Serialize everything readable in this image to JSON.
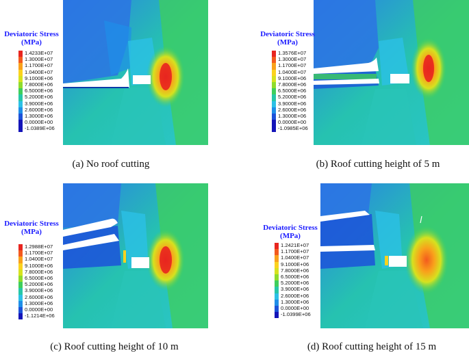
{
  "legend_colors": [
    "#e8251f",
    "#f35a1e",
    "#f9a11b",
    "#fbd21e",
    "#d6e21f",
    "#8fdc2c",
    "#3fce5c",
    "#26c7a8",
    "#2cc0e6",
    "#1f8ee8",
    "#1c52d9",
    "#1414b8"
  ],
  "panels": [
    {
      "id": "a",
      "legend_title_line1": "Deviatoric Stress",
      "legend_title_line2": "(MPa)",
      "legend_labels": [
        "1.4233E+07",
        "1.3000E+07",
        "1.1700E+07",
        "1.0400E+07",
        "9.1000E+06",
        "7.8000E+06",
        "6.5000E+06",
        "5.2000E+06",
        "3.9000E+06",
        "2.6000E+06",
        "1.3000E+06",
        "0.0000E+00",
        "-1.0389E+06"
      ],
      "caption": "(a) No roof cutting"
    },
    {
      "id": "b",
      "legend_title_line1": "Deviatoric Stress",
      "legend_title_line2": "(MPa)",
      "legend_labels": [
        "1.3576E+07",
        "1.3000E+07",
        "1.1700E+07",
        "1.0400E+07",
        "9.1000E+06",
        "7.8000E+06",
        "6.5000E+06",
        "5.2000E+06",
        "3.9000E+06",
        "2.6000E+06",
        "1.3000E+06",
        "0.0000E+00",
        "-1.0985E+06"
      ],
      "caption": "(b) Roof cutting height of 5 m"
    },
    {
      "id": "c",
      "legend_title_line1": "Deviatoric Stress",
      "legend_title_line2": "(MPa)",
      "legend_labels": [
        "1.2988E+07",
        "1.1700E+07",
        "1.0400E+07",
        "9.1000E+06",
        "7.8000E+06",
        "6.5000E+06",
        "5.2000E+06",
        "3.9000E+06",
        "2.6000E+06",
        "1.3000E+06",
        "0.0000E+00",
        "-1.1214E+06"
      ],
      "caption": "(c) Roof cutting height of 10 m"
    },
    {
      "id": "d",
      "legend_title_line1": "Deviatoric Stress",
      "legend_title_line2": "(MPa)",
      "legend_labels": [
        "1.2421E+07",
        "1.1700E+07",
        "1.0400E+07",
        "9.1000E+06",
        "7.8000E+06",
        "6.5000E+06",
        "5.2000E+06",
        "3.9000E+06",
        "2.6000E+06",
        "1.3000E+06",
        "0.0000E+00",
        "-1.0399E+06"
      ],
      "caption": "(d) Roof cutting height of 15 m"
    }
  ]
}
